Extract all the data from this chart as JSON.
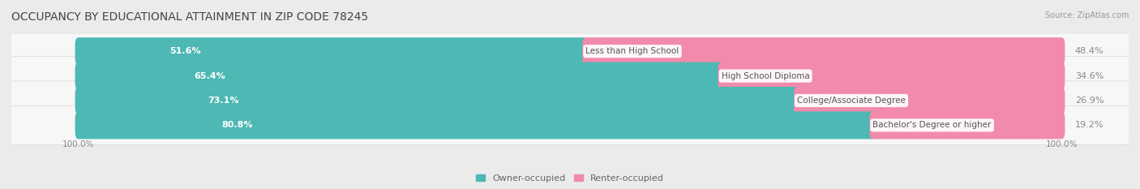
{
  "title": "OCCUPANCY BY EDUCATIONAL ATTAINMENT IN ZIP CODE 78245",
  "source": "Source: ZipAtlas.com",
  "categories": [
    "Less than High School",
    "High School Diploma",
    "College/Associate Degree",
    "Bachelor's Degree or higher"
  ],
  "owner_pct": [
    51.6,
    65.4,
    73.1,
    80.8
  ],
  "renter_pct": [
    48.4,
    34.6,
    26.9,
    19.2
  ],
  "owner_color": "#4db8b4",
  "renter_color": "#f28aab",
  "bg_color": "#ebebeb",
  "row_bg_color": "#f7f7f7",
  "row_shadow_color": "#d8d8d8",
  "title_fontsize": 10,
  "label_fontsize": 8,
  "axis_label_fontsize": 7.5,
  "legend_fontsize": 8,
  "left_pct_label": "100.0%",
  "right_pct_label": "100.0%"
}
